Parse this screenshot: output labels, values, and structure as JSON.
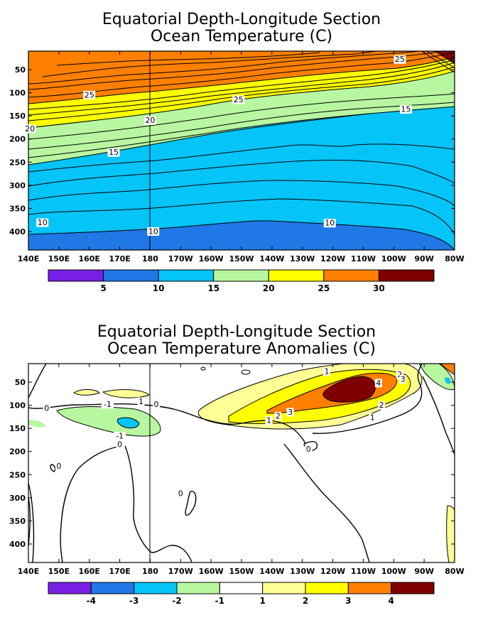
{
  "chart_data": [
    {
      "type": "heatmap",
      "title": "Equatorial Depth-Longitude Section",
      "subtitle": "Ocean Temperature (C)",
      "x_ticks": [
        "140E",
        "150E",
        "160E",
        "170E",
        "180",
        "170W",
        "160W",
        "150W",
        "140W",
        "130W",
        "120W",
        "110W",
        "100W",
        "90W",
        "80W"
      ],
      "x_range_deg_east": [
        140,
        280
      ],
      "y_ticks": [
        50,
        100,
        150,
        200,
        250,
        300,
        350,
        400
      ],
      "y_range": [
        10,
        440
      ],
      "colorbar": {
        "colors": [
          "#7a1fe6",
          "#1f78e6",
          "#05c4f7",
          "#b8f7a0",
          "#ffff00",
          "#ff8000",
          "#800000"
        ],
        "tick_labels": [
          "5",
          "10",
          "15",
          "20",
          "25",
          "30"
        ]
      },
      "contour_labels": [
        {
          "text": "25",
          "lon": 262,
          "depth": 28
        },
        {
          "text": "25",
          "lon": 160,
          "depth": 105
        },
        {
          "text": "25",
          "lon": 209,
          "depth": 115
        },
        {
          "text": "15",
          "lon": 264,
          "depth": 136
        },
        {
          "text": "20",
          "lon": 140.5,
          "depth": 178
        },
        {
          "text": "20",
          "lon": 180,
          "depth": 160
        },
        {
          "text": "15",
          "lon": 168,
          "depth": 229
        },
        {
          "text": "10",
          "lon": 144.6,
          "depth": 381
        },
        {
          "text": "10",
          "lon": 181,
          "depth": 400
        },
        {
          "text": "10",
          "lon": 239,
          "depth": 382
        }
      ]
    },
    {
      "type": "heatmap",
      "title": "Equatorial Depth-Longitude Section",
      "subtitle": "Ocean Temperature Anomalies (C)",
      "x_ticks": [
        "140E",
        "150E",
        "160E",
        "170E",
        "180",
        "170W",
        "160W",
        "150W",
        "140W",
        "130W",
        "120W",
        "110W",
        "100W",
        "90W",
        "80W"
      ],
      "x_range_deg_east": [
        140,
        280
      ],
      "y_ticks": [
        50,
        100,
        150,
        200,
        250,
        300,
        350,
        400
      ],
      "y_range": [
        10,
        440
      ],
      "colorbar": {
        "colors": [
          "#7a1fe6",
          "#1f78e6",
          "#05c4f7",
          "#b8f7a0",
          "#ffffff",
          "#ffff96",
          "#ffff00",
          "#ff8000",
          "#800000"
        ],
        "tick_labels": [
          "-4",
          "-3",
          "-2",
          "-1",
          "1",
          "2",
          "3",
          "4"
        ]
      },
      "contour_labels": [
        {
          "text": "1",
          "lon": 238,
          "depth": 27
        },
        {
          "text": "2",
          "lon": 262,
          "depth": 34
        },
        {
          "text": "3",
          "lon": 263,
          "depth": 44
        },
        {
          "text": "4",
          "lon": 255,
          "depth": 52
        },
        {
          "text": "0",
          "lon": 146,
          "depth": 107
        },
        {
          "text": "-1",
          "lon": 166,
          "depth": 98
        },
        {
          "text": "1",
          "lon": 177,
          "depth": 92
        },
        {
          "text": "0",
          "lon": 182,
          "depth": 98
        },
        {
          "text": "3",
          "lon": 226,
          "depth": 115
        },
        {
          "text": "2",
          "lon": 222,
          "depth": 124
        },
        {
          "text": "1",
          "lon": 219,
          "depth": 133
        },
        {
          "text": "2",
          "lon": 256,
          "depth": 100
        },
        {
          "text": "1",
          "lon": 253,
          "depth": 127
        },
        {
          "text": "-1",
          "lon": 170,
          "depth": 167
        },
        {
          "text": "0",
          "lon": 170,
          "depth": 185
        },
        {
          "text": "0",
          "lon": 150,
          "depth": 232
        },
        {
          "text": "0",
          "lon": 232,
          "depth": 195
        },
        {
          "text": "0",
          "lon": 190,
          "depth": 291
        }
      ]
    }
  ]
}
